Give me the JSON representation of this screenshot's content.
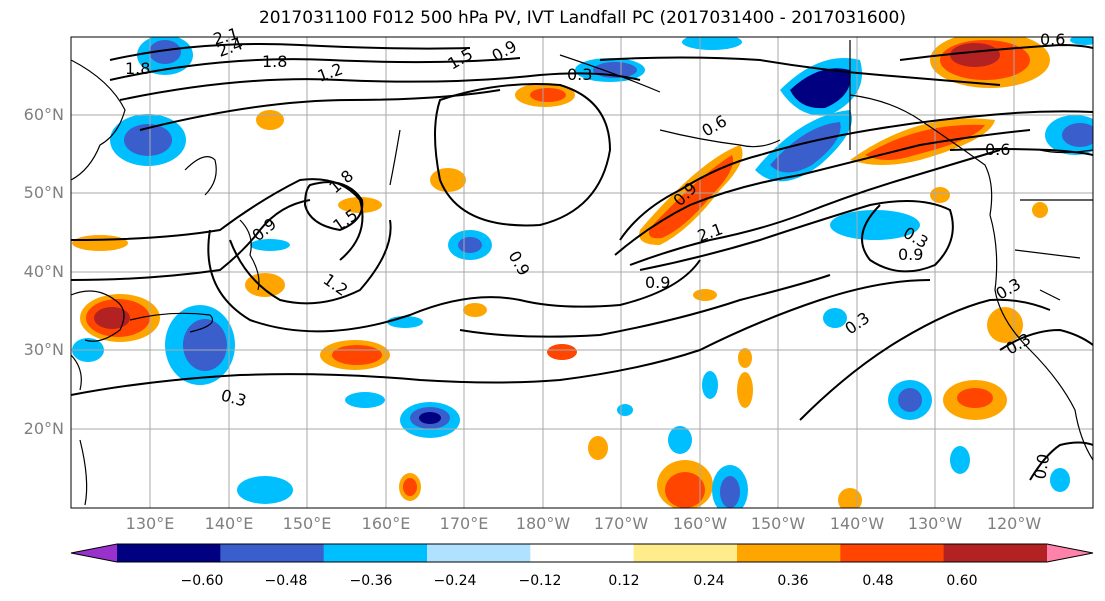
{
  "title": "2017031100 F012 500 hPa PV, IVT Landfall PC (2017031400 - 2017031600)",
  "lat_labels": [
    "60°N",
    "50°N",
    "40°N",
    "30°N",
    "20°N"
  ],
  "lon_labels": [
    "130°E",
    "140°E",
    "150°E",
    "160°E",
    "170°E",
    "180°W",
    "170°W",
    "160°W",
    "150°W",
    "140°W",
    "130°W",
    "120°W"
  ],
  "contour_labels": [
    "1.8",
    "2.4",
    "2.1",
    "1.8",
    "1.5",
    "0.9",
    "0.3",
    "1.2",
    "0.6",
    "0.6",
    "0.9",
    "1.5",
    "1.8",
    "1.2",
    "0.9",
    "2.1",
    "0.9",
    "0.9",
    "0.9",
    "0.3",
    "0.3",
    "0.3",
    "0.3",
    "0.0",
    "0.3",
    "0.6"
  ],
  "colorbar": {
    "tick_labels": [
      "−0.60",
      "−0.48",
      "−0.36",
      "−0.24",
      "−0.12",
      "0.12",
      "0.24",
      "0.36",
      "0.48",
      "0.60"
    ],
    "colors": [
      "#9932CC",
      "#000080",
      "#3A5FCD",
      "#00BFFF",
      "#B0E2FF",
      "#FFFFFF",
      "#FFEC8B",
      "#FFA500",
      "#FF4500",
      "#B22222",
      "#FF82AB"
    ]
  },
  "colors": {
    "graticule": "#a9a9a9",
    "contour": "#000000",
    "axis_label": "#808080"
  }
}
